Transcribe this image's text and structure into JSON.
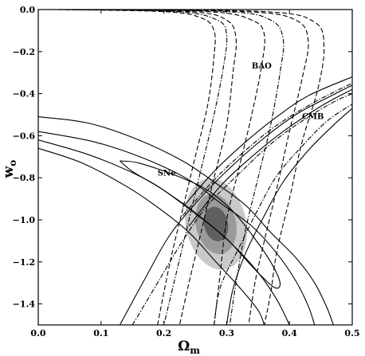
{
  "chart_data": {
    "type": "contour",
    "xlabel": "Ω",
    "xlabel_sub": "m",
    "ylabel": "w",
    "ylabel_sub": "o",
    "xlim": [
      0.0,
      0.5
    ],
    "ylim": [
      -1.5,
      0.0
    ],
    "xticks": [
      0.0,
      0.1,
      0.2,
      0.3,
      0.4,
      0.5
    ],
    "xtick_labels": [
      "0.0",
      "0.1",
      "0.2",
      "0.3",
      "0.4",
      "0.5"
    ],
    "yticks": [
      0.0,
      -0.2,
      -0.4,
      -0.6,
      -0.8,
      -1.0,
      -1.2,
      -1.4
    ],
    "ytick_labels": [
      "0.0",
      "−0.2",
      "−0.4",
      "−0.6",
      "−0.8",
      "−1.0",
      "−1.2",
      "−1.4"
    ],
    "grid": false,
    "annotations": [
      {
        "text": "BAO",
        "x": 0.34,
        "y": -0.28
      },
      {
        "text": "CMB",
        "x": 0.42,
        "y": -0.52
      },
      {
        "text": "SNe",
        "x": 0.19,
        "y": -0.79
      }
    ],
    "combined_contours": [
      {
        "level": "3σ",
        "fill": "#c9c9c9",
        "cx": 0.283,
        "cy": -1.02,
        "rx": 0.048,
        "ry": 0.22,
        "angle": -12
      },
      {
        "level": "2σ",
        "fill": "#9a9a9a",
        "cx": 0.283,
        "cy": -1.02,
        "rx": 0.032,
        "ry": 0.145,
        "angle": -12
      },
      {
        "level": "1σ",
        "fill": "#5f5f5f",
        "cx": 0.283,
        "cy": -1.02,
        "rx": 0.019,
        "ry": 0.083,
        "angle": -12
      }
    ],
    "sne_contours": [
      {
        "level": "1σ",
        "style": "solid",
        "points": [
          [
            0.13,
            -0.72
          ],
          [
            0.16,
            -0.73
          ],
          [
            0.22,
            -0.79
          ],
          [
            0.27,
            -0.86
          ],
          [
            0.31,
            -0.96
          ],
          [
            0.34,
            -1.07
          ],
          [
            0.37,
            -1.2
          ],
          [
            0.385,
            -1.3
          ],
          [
            0.375,
            -1.32
          ],
          [
            0.34,
            -1.22
          ],
          [
            0.3,
            -1.09
          ],
          [
            0.25,
            -0.97
          ],
          [
            0.2,
            -0.86
          ],
          [
            0.15,
            -0.77
          ],
          [
            0.13,
            -0.72
          ]
        ]
      },
      {
        "level": "2σ",
        "style": "solid",
        "points": [
          [
            0.0,
            -0.51
          ],
          [
            0.08,
            -0.54
          ],
          [
            0.16,
            -0.62
          ],
          [
            0.23,
            -0.72
          ],
          [
            0.28,
            -0.82
          ],
          [
            0.33,
            -0.93
          ],
          [
            0.37,
            -1.06
          ],
          [
            0.41,
            -1.18
          ],
          [
            0.44,
            -1.3
          ],
          [
            0.46,
            -1.42
          ],
          [
            0.47,
            -1.5
          ]
        ]
      },
      {
        "level": "2σ",
        "style": "solid",
        "points": [
          [
            0.0,
            -0.62
          ],
          [
            0.08,
            -0.69
          ],
          [
            0.16,
            -0.79
          ],
          [
            0.21,
            -0.88
          ],
          [
            0.26,
            -0.99
          ],
          [
            0.31,
            -1.12
          ],
          [
            0.35,
            -1.25
          ],
          [
            0.38,
            -1.38
          ],
          [
            0.4,
            -1.5
          ]
        ]
      },
      {
        "level": "3σ",
        "style": "solid",
        "points": [
          [
            0.0,
            -0.58
          ],
          [
            0.09,
            -0.63
          ],
          [
            0.17,
            -0.71
          ],
          [
            0.24,
            -0.81
          ],
          [
            0.29,
            -0.92
          ],
          [
            0.34,
            -1.03
          ],
          [
            0.38,
            -1.16
          ],
          [
            0.41,
            -1.29
          ],
          [
            0.43,
            -1.41
          ],
          [
            0.44,
            -1.5
          ]
        ]
      },
      {
        "level": "3σ",
        "style": "solid",
        "points": [
          [
            0.0,
            -0.66
          ],
          [
            0.07,
            -0.73
          ],
          [
            0.14,
            -0.84
          ],
          [
            0.19,
            -0.94
          ],
          [
            0.24,
            -1.06
          ],
          [
            0.28,
            -1.19
          ],
          [
            0.32,
            -1.32
          ],
          [
            0.35,
            -1.43
          ],
          [
            0.36,
            -1.5
          ]
        ]
      }
    ],
    "cmb_contours": [
      {
        "style": "solid",
        "points": [
          [
            0.23,
            -0.94
          ],
          [
            0.28,
            -0.77
          ],
          [
            0.33,
            -0.63
          ],
          [
            0.38,
            -0.51
          ],
          [
            0.43,
            -0.41
          ],
          [
            0.5,
            -0.32
          ]
        ]
      },
      {
        "style": "solid",
        "points": [
          [
            0.24,
            -1.03
          ],
          [
            0.29,
            -0.84
          ],
          [
            0.34,
            -0.7
          ],
          [
            0.39,
            -0.58
          ],
          [
            0.45,
            -0.46
          ],
          [
            0.5,
            -0.38
          ]
        ]
      },
      {
        "style": "dashdot",
        "points": [
          [
            0.23,
            -0.98
          ],
          [
            0.28,
            -0.81
          ],
          [
            0.33,
            -0.67
          ],
          [
            0.38,
            -0.55
          ],
          [
            0.44,
            -0.44
          ],
          [
            0.5,
            -0.35
          ]
        ]
      },
      {
        "style": "solid",
        "points": [
          [
            0.13,
            -1.5
          ],
          [
            0.17,
            -1.28
          ],
          [
            0.21,
            -1.07
          ],
          [
            0.26,
            -0.89
          ],
          [
            0.31,
            -0.74
          ],
          [
            0.36,
            -0.61
          ],
          [
            0.41,
            -0.5
          ],
          [
            0.46,
            -0.42
          ],
          [
            0.5,
            -0.36
          ]
        ]
      },
      {
        "style": "solid",
        "points": [
          [
            0.3,
            -1.5
          ],
          [
            0.31,
            -1.33
          ],
          [
            0.33,
            -1.16
          ],
          [
            0.36,
            -0.98
          ],
          [
            0.39,
            -0.82
          ],
          [
            0.43,
            -0.67
          ],
          [
            0.47,
            -0.55
          ],
          [
            0.5,
            -0.47
          ]
        ]
      },
      {
        "style": "dashdot",
        "points": [
          [
            0.15,
            -1.5
          ],
          [
            0.19,
            -1.3
          ],
          [
            0.23,
            -1.1
          ],
          [
            0.27,
            -0.93
          ],
          [
            0.32,
            -0.78
          ],
          [
            0.37,
            -0.64
          ],
          [
            0.42,
            -0.53
          ],
          [
            0.47,
            -0.44
          ],
          [
            0.5,
            -0.4
          ]
        ]
      },
      {
        "style": "dashdot",
        "points": [
          [
            0.28,
            -1.5
          ],
          [
            0.29,
            -1.32
          ],
          [
            0.32,
            -1.13
          ],
          [
            0.35,
            -0.95
          ],
          [
            0.38,
            -0.79
          ],
          [
            0.42,
            -0.65
          ],
          [
            0.46,
            -0.53
          ],
          [
            0.5,
            -0.45
          ]
        ]
      }
    ],
    "bao_contours": [
      {
        "style": "dashed",
        "points": [
          [
            0.02,
            0.0
          ],
          [
            0.2,
            -0.01
          ],
          [
            0.26,
            -0.04
          ],
          [
            0.28,
            -0.1
          ],
          [
            0.28,
            -0.22
          ],
          [
            0.27,
            -0.45
          ],
          [
            0.25,
            -0.7
          ],
          [
            0.23,
            -0.95
          ],
          [
            0.21,
            -1.2
          ],
          [
            0.19,
            -1.5
          ]
        ]
      },
      {
        "style": "dashdot",
        "points": [
          [
            0.03,
            0.0
          ],
          [
            0.22,
            -0.01
          ],
          [
            0.285,
            -0.05
          ],
          [
            0.3,
            -0.12
          ],
          [
            0.295,
            -0.27
          ],
          [
            0.28,
            -0.5
          ],
          [
            0.26,
            -0.75
          ],
          [
            0.24,
            -1.0
          ],
          [
            0.22,
            -1.25
          ],
          [
            0.2,
            -1.5
          ]
        ]
      },
      {
        "style": "dashed",
        "points": [
          [
            0.04,
            0.0
          ],
          [
            0.24,
            -0.01
          ],
          [
            0.3,
            -0.05
          ],
          [
            0.315,
            -0.14
          ],
          [
            0.31,
            -0.3
          ],
          [
            0.3,
            -0.55
          ],
          [
            0.28,
            -0.8
          ],
          [
            0.26,
            -1.05
          ],
          [
            0.24,
            -1.3
          ],
          [
            0.225,
            -1.5
          ]
        ]
      },
      {
        "style": "dashed",
        "points": [
          [
            0.05,
            0.0
          ],
          [
            0.27,
            -0.01
          ],
          [
            0.34,
            -0.05
          ],
          [
            0.36,
            -0.12
          ],
          [
            0.355,
            -0.28
          ],
          [
            0.34,
            -0.5
          ],
          [
            0.32,
            -0.75
          ],
          [
            0.3,
            -1.0
          ],
          [
            0.29,
            -1.25
          ],
          [
            0.28,
            -1.5
          ]
        ]
      },
      {
        "style": "dashdot",
        "points": [
          [
            0.06,
            0.0
          ],
          [
            0.3,
            -0.01
          ],
          [
            0.37,
            -0.05
          ],
          [
            0.39,
            -0.14
          ],
          [
            0.385,
            -0.3
          ],
          [
            0.37,
            -0.55
          ],
          [
            0.35,
            -0.8
          ],
          [
            0.33,
            -1.05
          ],
          [
            0.315,
            -1.3
          ],
          [
            0.305,
            -1.5
          ]
        ]
      },
      {
        "style": "dashed",
        "points": [
          [
            0.07,
            0.0
          ],
          [
            0.33,
            -0.01
          ],
          [
            0.41,
            -0.05
          ],
          [
            0.43,
            -0.15
          ],
          [
            0.42,
            -0.33
          ],
          [
            0.4,
            -0.58
          ],
          [
            0.38,
            -0.85
          ],
          [
            0.36,
            -1.1
          ],
          [
            0.345,
            -1.3
          ],
          [
            0.335,
            -1.5
          ]
        ]
      },
      {
        "style": "dashed",
        "points": [
          [
            0.08,
            0.0
          ],
          [
            0.36,
            -0.01
          ],
          [
            0.44,
            -0.06
          ],
          [
            0.455,
            -0.18
          ],
          [
            0.445,
            -0.38
          ],
          [
            0.42,
            -0.63
          ],
          [
            0.4,
            -0.9
          ],
          [
            0.38,
            -1.15
          ],
          [
            0.37,
            -1.35
          ],
          [
            0.36,
            -1.5
          ]
        ]
      }
    ]
  }
}
